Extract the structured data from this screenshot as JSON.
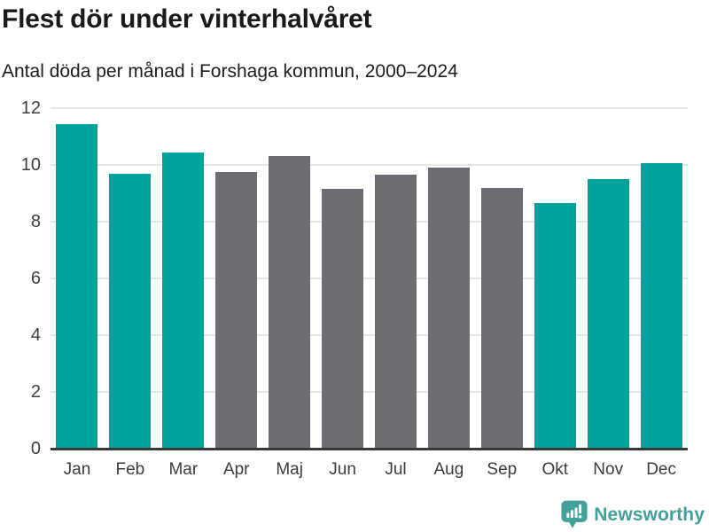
{
  "header": {
    "title": "Flest dör under vinterhalvåret",
    "subtitle": "Antal döda per månad i Forshaga kommun, 2000–2024"
  },
  "chart_data": {
    "type": "bar",
    "title": "Flest dör under vinterhalvåret",
    "subtitle": "Antal döda per månad i Forshaga kommun, 2000–2024",
    "categories": [
      "Jan",
      "Feb",
      "Mar",
      "Apr",
      "Maj",
      "Jun",
      "Jul",
      "Aug",
      "Sep",
      "Okt",
      "Nov",
      "Dec"
    ],
    "values": [
      11.45,
      9.7,
      10.45,
      9.75,
      10.3,
      9.15,
      9.65,
      9.9,
      9.2,
      8.65,
      9.5,
      10.05
    ],
    "bar_color_keys": [
      "teal",
      "teal",
      "teal",
      "gray",
      "gray",
      "gray",
      "gray",
      "gray",
      "gray",
      "teal",
      "teal",
      "teal"
    ],
    "colors": {
      "teal": "#00a39b",
      "gray": "#6c6c72"
    },
    "xlabel": "",
    "ylabel": "",
    "ylim": [
      0,
      12
    ],
    "yticks": [
      0,
      2,
      4,
      6,
      8,
      10,
      12
    ],
    "grid": true,
    "legend": "none",
    "highlight_meaning": "winter-half-year months (Okt–Mar) in teal, summer months (Apr–Sep) in gray"
  },
  "footer": {
    "brand": "Newsworthy",
    "brand_color": "#43a09b",
    "logo_icon": "newsworthy-chart-bubble-icon"
  }
}
